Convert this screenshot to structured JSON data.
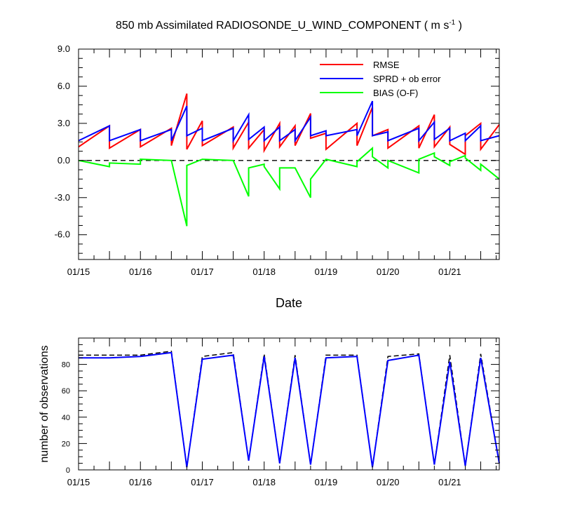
{
  "colors": {
    "rmse": "#ff0000",
    "sprd": "#0000ff",
    "bias": "#00ff00",
    "zero": "#000000",
    "nobs_possible": "#000000",
    "nobs_used": "#0000ff"
  },
  "chart_data": [
    {
      "type": "line",
      "title": "850 mb Assimilated RADIOSONDE_U_WIND_COMPONENT ( m s",
      "title_sup": "-1",
      "title_end": " )",
      "xlabel": "Date",
      "ylabel": "",
      "ylim": [
        -8.0,
        9.0
      ],
      "yticks": [
        -6.0,
        -3.0,
        0.0,
        3.0,
        6.0,
        9.0
      ],
      "ytick_labels": [
        "-6.0",
        "-3.0",
        "0.0",
        "3.0",
        "6.0",
        "9.0"
      ],
      "xlim": [
        15.0,
        21.8
      ],
      "xticks": [
        15,
        16,
        17,
        18,
        19,
        20,
        21
      ],
      "xtick_labels": [
        "01/15",
        "01/16",
        "01/17",
        "01/18",
        "01/19",
        "01/20",
        "01/21"
      ],
      "grid": false,
      "legend_position": "top-right",
      "series": [
        {
          "name": "RMSE",
          "color_key": "rmse",
          "x": [
            15.0,
            15.5,
            15.5,
            16.0,
            16.0,
            16.5,
            16.5,
            16.75,
            16.75,
            17.0,
            17.0,
            17.5,
            17.5,
            17.75,
            17.75,
            18.0,
            18.0,
            18.25,
            18.25,
            18.5,
            18.5,
            18.75,
            18.75,
            19.0,
            19.0,
            19.5,
            19.5,
            19.75,
            19.75,
            20.0,
            20.0,
            20.5,
            20.5,
            20.75,
            20.75,
            21.0,
            21.0,
            21.25,
            21.25,
            21.5,
            21.5,
            21.8
          ],
          "y": [
            1.1,
            2.8,
            1.0,
            2.5,
            1.1,
            2.6,
            1.2,
            5.4,
            0.9,
            3.2,
            1.2,
            2.7,
            1.0,
            3.1,
            1.0,
            2.5,
            0.8,
            3.0,
            1.1,
            2.8,
            1.2,
            3.8,
            1.8,
            2.2,
            0.9,
            3.0,
            1.2,
            4.3,
            2.0,
            2.5,
            1.0,
            2.8,
            1.0,
            3.7,
            1.1,
            2.7,
            1.3,
            0.5,
            2.0,
            3.0,
            0.9,
            2.9
          ]
        },
        {
          "name": "SPRD + ob error",
          "color_key": "sprd",
          "x": [
            15.0,
            15.5,
            15.5,
            16.0,
            16.0,
            16.5,
            16.5,
            16.75,
            16.75,
            17.0,
            17.0,
            17.5,
            17.5,
            17.75,
            17.75,
            18.0,
            18.0,
            18.25,
            18.25,
            18.5,
            18.5,
            18.75,
            18.75,
            19.0,
            19.0,
            19.5,
            19.5,
            19.75,
            19.75,
            20.0,
            20.0,
            20.5,
            20.5,
            20.75,
            20.75,
            21.0,
            21.0,
            21.25,
            21.25,
            21.5,
            21.5,
            21.8
          ],
          "y": [
            1.6,
            2.8,
            1.6,
            2.5,
            1.6,
            2.5,
            1.6,
            4.4,
            2.0,
            2.6,
            1.6,
            2.6,
            1.6,
            3.7,
            1.7,
            2.7,
            1.6,
            2.7,
            1.6,
            2.5,
            1.6,
            3.5,
            2.0,
            2.4,
            2.0,
            2.5,
            2.0,
            4.8,
            2.0,
            2.3,
            1.6,
            2.6,
            1.6,
            3.1,
            1.7,
            2.6,
            1.6,
            2.2,
            1.6,
            2.8,
            1.6,
            2.0
          ]
        },
        {
          "name": "BIAS (O-F)",
          "color_key": "bias",
          "x": [
            15.0,
            15.5,
            15.5,
            16.0,
            16.0,
            16.5,
            16.5,
            16.75,
            16.75,
            17.0,
            17.0,
            17.5,
            17.5,
            17.75,
            17.75,
            18.0,
            18.0,
            18.25,
            18.25,
            18.5,
            18.5,
            18.75,
            18.75,
            19.0,
            19.0,
            19.5,
            19.5,
            19.75,
            19.75,
            20.0,
            20.0,
            20.5,
            20.5,
            20.75,
            20.75,
            21.0,
            21.0,
            21.25,
            21.25,
            21.5,
            21.5,
            21.8
          ],
          "y": [
            0.0,
            -0.5,
            -0.2,
            -0.3,
            0.1,
            0.0,
            0.0,
            -5.3,
            -0.4,
            0.1,
            0.1,
            0.0,
            0.0,
            -2.9,
            -0.6,
            -0.3,
            -0.5,
            -2.3,
            -0.6,
            -0.6,
            -0.6,
            -3.0,
            -1.5,
            0.1,
            0.1,
            -0.5,
            -0.1,
            1.0,
            0.3,
            -0.6,
            0.0,
            -1.0,
            0.1,
            0.6,
            0.3,
            -0.4,
            -0.1,
            0.4,
            0.2,
            -0.8,
            -0.3,
            -1.5
          ]
        }
      ],
      "reference_lines": [
        {
          "y": 0.0,
          "style": "dashed",
          "color_key": "zero"
        }
      ]
    },
    {
      "type": "line",
      "title": "",
      "xlabel": "",
      "ylabel": "number of observations",
      "ylim": [
        0,
        100
      ],
      "yticks": [
        0,
        20,
        40,
        60,
        80
      ],
      "ytick_labels": [
        "0",
        "20",
        "40",
        "60",
        "80"
      ],
      "xlim": [
        15.0,
        21.8
      ],
      "xticks": [
        15,
        16,
        17,
        18,
        19,
        20,
        21
      ],
      "xtick_labels": [
        "01/15",
        "01/16",
        "01/17",
        "01/18",
        "01/19",
        "01/20",
        "01/21"
      ],
      "grid": false,
      "series": [
        {
          "color_key": "nobs_possible",
          "style": "dashed",
          "x": [
            15.0,
            15.5,
            16.0,
            16.5,
            16.75,
            17.0,
            17.5,
            17.75,
            18.0,
            18.25,
            18.5,
            18.75,
            19.0,
            19.5,
            19.75,
            20.0,
            20.5,
            20.75,
            21.0,
            21.25,
            21.5,
            21.8
          ],
          "y": [
            87,
            87,
            87,
            90,
            2,
            86,
            89,
            7,
            88,
            5,
            87,
            4,
            87,
            87,
            2,
            86,
            88,
            4,
            87,
            3,
            88,
            5
          ]
        },
        {
          "color_key": "nobs_used",
          "style": "solid",
          "x": [
            15.0,
            15.5,
            16.0,
            16.5,
            16.75,
            17.0,
            17.5,
            17.75,
            18.0,
            18.25,
            18.5,
            18.75,
            19.0,
            19.5,
            19.75,
            20.0,
            20.5,
            20.75,
            21.0,
            21.25,
            21.5,
            21.8
          ],
          "y": [
            85,
            85,
            86,
            89,
            2,
            84,
            87,
            7,
            86,
            5,
            85,
            4,
            85,
            86,
            2,
            83,
            87,
            4,
            82,
            3,
            85,
            5
          ]
        }
      ]
    }
  ]
}
